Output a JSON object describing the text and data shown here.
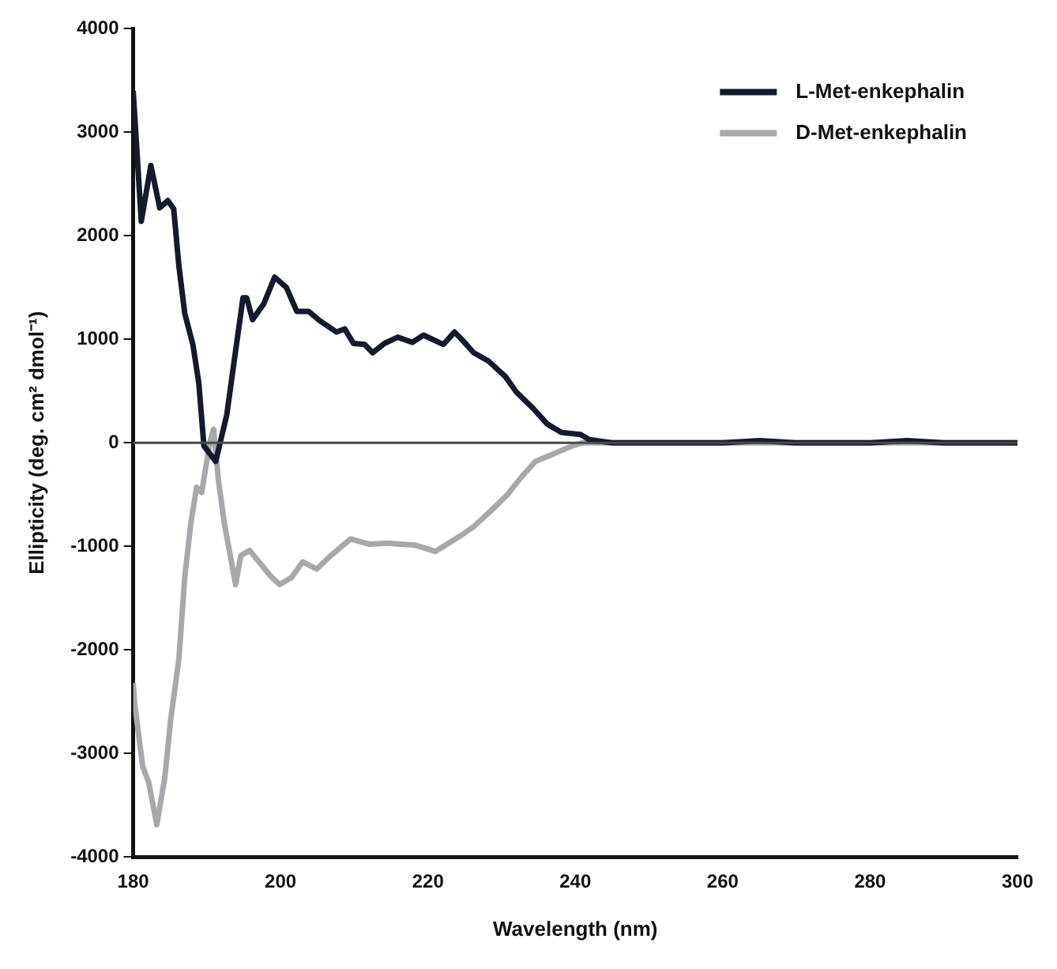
{
  "chart_data": {
    "type": "line",
    "xlabel": "Wavelength (nm)",
    "ylabel": "Ellipticity (deg. cm² dmol⁻¹)",
    "xlim": [
      180,
      300
    ],
    "xticks": [
      180,
      200,
      220,
      240,
      260,
      280,
      300
    ],
    "ylim": [
      -4000,
      4000
    ],
    "yticks": [
      -4000,
      -3000,
      -2000,
      -1000,
      0,
      1000,
      2000,
      3000,
      4000
    ],
    "grid": false,
    "legend": "top right",
    "marker": "none",
    "line_style": "solid",
    "ref_lines": [
      {
        "axis": "y",
        "value": 0,
        "color": "#4a4a4a"
      }
    ],
    "series": [
      {
        "name": "L-Met-enkephalin",
        "color": "#141a2e",
        "x": [
          180,
          181.1,
          182.4,
          183.6,
          184.7,
          185.5,
          186.2,
          187,
          188.1,
          188.9,
          189.6,
          191.2,
          192.7,
          193.9,
          194.9,
          195.4,
          196.2,
          197.7,
          199.2,
          200.8,
          202.2,
          203.8,
          205.3,
          207.6,
          208.7,
          209.9,
          211.4,
          212.5,
          214.1,
          215.9,
          217.9,
          219.4,
          222.1,
          223.6,
          224.7,
          226.2,
          228.2,
          230.5,
          232,
          234.3,
          236.2,
          238.1,
          240.7,
          241.9,
          245,
          250,
          255,
          260,
          265,
          270,
          275,
          280,
          285,
          290,
          295,
          300
        ],
        "values": [
          3400,
          2140,
          2680,
          2270,
          2340,
          2260,
          1710,
          1250,
          950,
          580,
          -30,
          -180,
          270,
          890,
          1400,
          1400,
          1190,
          1340,
          1600,
          1500,
          1270,
          1270,
          1180,
          1070,
          1100,
          960,
          950,
          870,
          960,
          1020,
          970,
          1040,
          950,
          1070,
          990,
          870,
          790,
          640,
          490,
          330,
          180,
          100,
          80,
          30,
          0,
          0,
          0,
          0,
          20,
          0,
          0,
          0,
          20,
          0,
          0,
          0
        ]
      },
      {
        "name": "D-Met-enkephalin",
        "color": "#a6a8ab",
        "x": [
          180,
          180.2,
          181.3,
          182.1,
          183.2,
          184.3,
          185.1,
          186.2,
          187,
          187.8,
          188.6,
          189.3,
          190.4,
          190.9,
          191.6,
          192.4,
          193.9,
          194.6,
          195.8,
          197.3,
          198.8,
          199.9,
          201.5,
          203,
          204.9,
          206.8,
          209.5,
          212.1,
          214.5,
          218.3,
          221,
          224.6,
          226.2,
          228.5,
          230.8,
          232.7,
          234.6,
          237.3,
          239.6,
          241,
          245,
          250,
          260,
          270,
          280,
          290,
          300
        ],
        "values": [
          -2320,
          -2520,
          -3130,
          -3280,
          -3690,
          -3230,
          -2670,
          -2090,
          -1300,
          -790,
          -430,
          -480,
          0,
          130,
          -380,
          -790,
          -1370,
          -1090,
          -1040,
          -1170,
          -1300,
          -1370,
          -1300,
          -1150,
          -1220,
          -1090,
          -930,
          -980,
          -970,
          -990,
          -1050,
          -890,
          -810,
          -660,
          -500,
          -330,
          -180,
          -100,
          -30,
          0,
          0,
          0,
          0,
          0,
          0,
          0,
          0
        ]
      }
    ]
  }
}
